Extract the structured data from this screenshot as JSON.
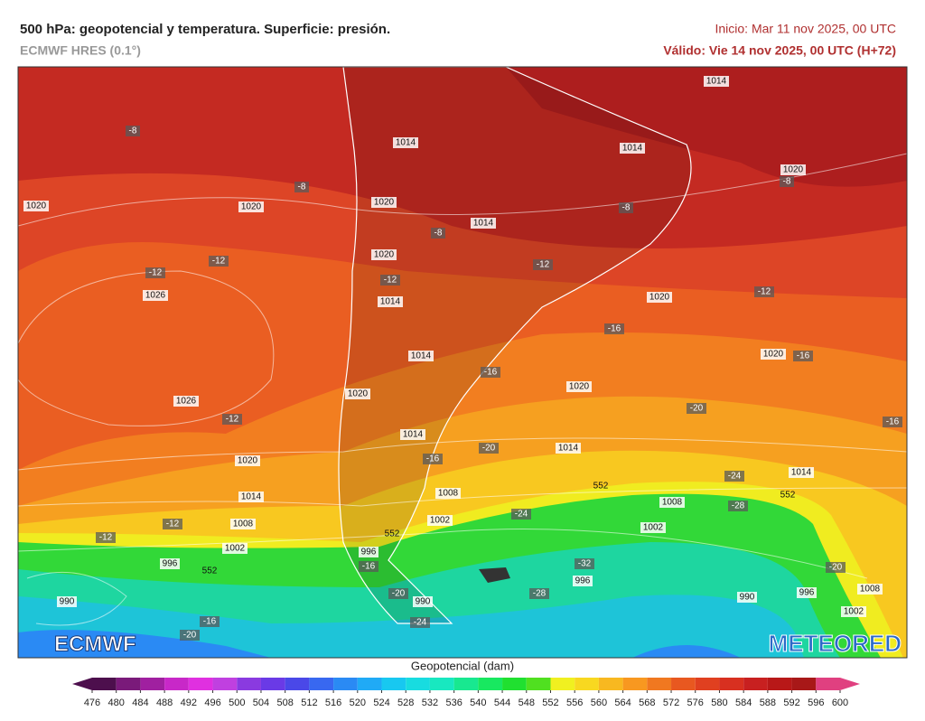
{
  "header": {
    "title": "500 hPa: geopotencial y temperatura. Superficie: presión.",
    "model": "ECMWF HRES (0.1°)",
    "init": "Inicio: Mar 11 nov 2025, 00 UTC",
    "valid": "Válido: Vie 14 nov 2025, 00 UTC (H+72)"
  },
  "map": {
    "isobar_labels": [
      "1014",
      "1014",
      "1014",
      "1020",
      "1020",
      "1020",
      "1014",
      "1020",
      "1014",
      "1020",
      "1026",
      "1014",
      "1020",
      "1020",
      "1020",
      "1026",
      "1014",
      "1014",
      "1020",
      "1014",
      "1014",
      "1008",
      "1008",
      "1008",
      "1002",
      "1002",
      "1002",
      "996",
      "996",
      "996",
      "990",
      "990",
      "990",
      "996",
      "1008",
      "1002",
      "1020"
    ],
    "temperature_labels": [
      "-8",
      "-8",
      "-8",
      "-8",
      "-8",
      "-12",
      "-12",
      "-12",
      "-12",
      "-12",
      "-12",
      "-12",
      "-12",
      "-16",
      "-16",
      "-16",
      "-16",
      "-16",
      "-16",
      "-16",
      "-20",
      "-20",
      "-20",
      "-20",
      "-20",
      "-24",
      "-24",
      "-24",
      "-28",
      "-28",
      "-32"
    ],
    "geopotential_labels": [
      "552",
      "552",
      "552",
      "552"
    ],
    "logo_left": "ECMWF",
    "logo_right": "METEORED"
  },
  "colorbar": {
    "title": "Geopotencial (dam)",
    "ticks": [
      476,
      480,
      484,
      488,
      492,
      496,
      500,
      504,
      508,
      512,
      516,
      520,
      524,
      528,
      532,
      536,
      540,
      544,
      548,
      552,
      556,
      560,
      564,
      568,
      572,
      576,
      580,
      584,
      588,
      592,
      596,
      600
    ],
    "colors": [
      "#4d0f4d",
      "#7a1a7a",
      "#a020a0",
      "#c828c8",
      "#e030e0",
      "#c040e0",
      "#8a3ae0",
      "#6a3ae6",
      "#4a48e8",
      "#3868f0",
      "#2a8af4",
      "#20aaf6",
      "#18c8f0",
      "#18dce0",
      "#18e8c0",
      "#18e890",
      "#18e860",
      "#20e030",
      "#50e020",
      "#f0f020",
      "#f8d820",
      "#f8b820",
      "#f89820",
      "#f07820",
      "#e85820",
      "#e04020",
      "#d83020",
      "#c82020",
      "#b81818",
      "#a81818",
      "#e04080"
    ]
  }
}
